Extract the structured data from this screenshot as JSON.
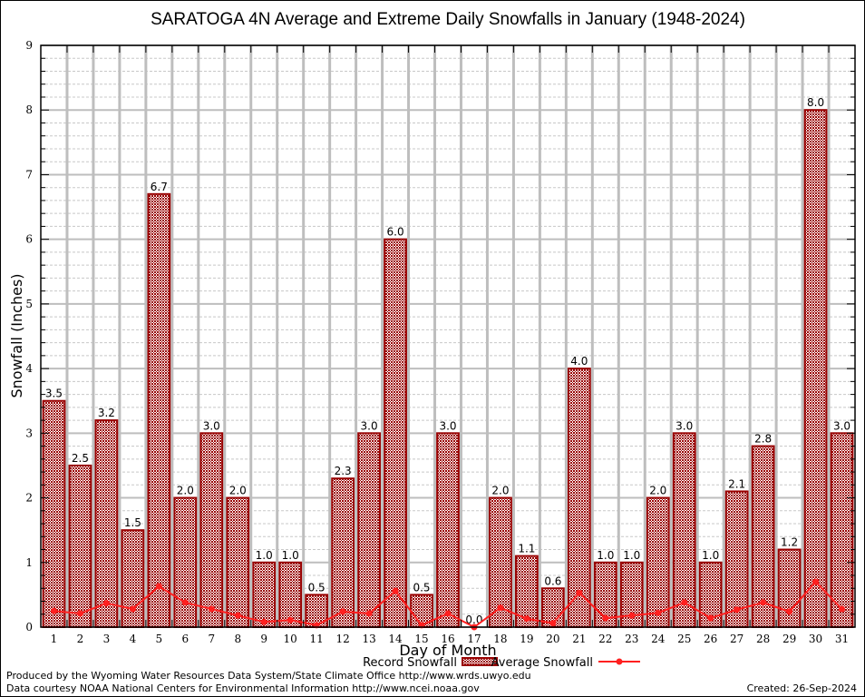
{
  "chart_data": {
    "type": "bar",
    "title": "SARATOGA 4N Average and Extreme Daily Snowfalls in January (1948-2024)",
    "xlabel": "Day of Month",
    "ylabel": "Snowfall (Inches)",
    "ylim": [
      0,
      9
    ],
    "yticks": [
      "0",
      "1",
      "2",
      "3",
      "4",
      "5",
      "6",
      "7",
      "8",
      "9"
    ],
    "grid": true,
    "legend_position": "bottom-center",
    "categories": [
      "1",
      "2",
      "3",
      "4",
      "5",
      "6",
      "7",
      "8",
      "9",
      "10",
      "11",
      "12",
      "13",
      "14",
      "15",
      "16",
      "17",
      "18",
      "19",
      "20",
      "21",
      "22",
      "23",
      "24",
      "25",
      "26",
      "27",
      "28",
      "29",
      "30",
      "31"
    ],
    "series": [
      {
        "name": "Record Snowfall",
        "type": "bar",
        "color": "#990000",
        "values": [
          3.5,
          2.5,
          3.2,
          1.5,
          6.7,
          2.0,
          3.0,
          2.0,
          1.0,
          1.0,
          0.5,
          2.3,
          3.0,
          6.0,
          0.5,
          3.0,
          0.0,
          2.0,
          1.1,
          0.6,
          4.0,
          1.0,
          1.0,
          2.0,
          3.0,
          1.0,
          2.1,
          2.8,
          1.2,
          8.0,
          3.0
        ],
        "labels": [
          "3.5",
          "2.5",
          "3.2",
          "1.5",
          "6.7",
          "2.0",
          "3.0",
          "2.0",
          "1.0",
          "1.0",
          "0.5",
          "2.3",
          "3.0",
          "6.0",
          "0.5",
          "3.0",
          "0.0",
          "2.0",
          "1.1",
          "0.6",
          "4.0",
          "1.0",
          "1.0",
          "2.0",
          "3.0",
          "1.0",
          "2.1",
          "2.8",
          "1.2",
          "8.0",
          "3.0"
        ]
      },
      {
        "name": "Average Snowfall",
        "type": "line",
        "color": "#ff2020",
        "values": [
          0.25,
          0.21,
          0.37,
          0.28,
          0.63,
          0.38,
          0.28,
          0.18,
          0.08,
          0.11,
          0.03,
          0.24,
          0.21,
          0.56,
          0.03,
          0.21,
          0.0,
          0.3,
          0.13,
          0.06,
          0.53,
          0.14,
          0.18,
          0.22,
          0.38,
          0.14,
          0.27,
          0.38,
          0.24,
          0.7,
          0.28
        ]
      }
    ]
  },
  "footer": {
    "line1": "Produced by the Wyoming Water Resources Data System/State Climate Office http://www.wrds.uwyo.edu",
    "line2": "Data courtesy NOAA National Centers for Environmental Information http://www.ncei.noaa.gov",
    "created": "Created: 26-Sep-2024"
  }
}
